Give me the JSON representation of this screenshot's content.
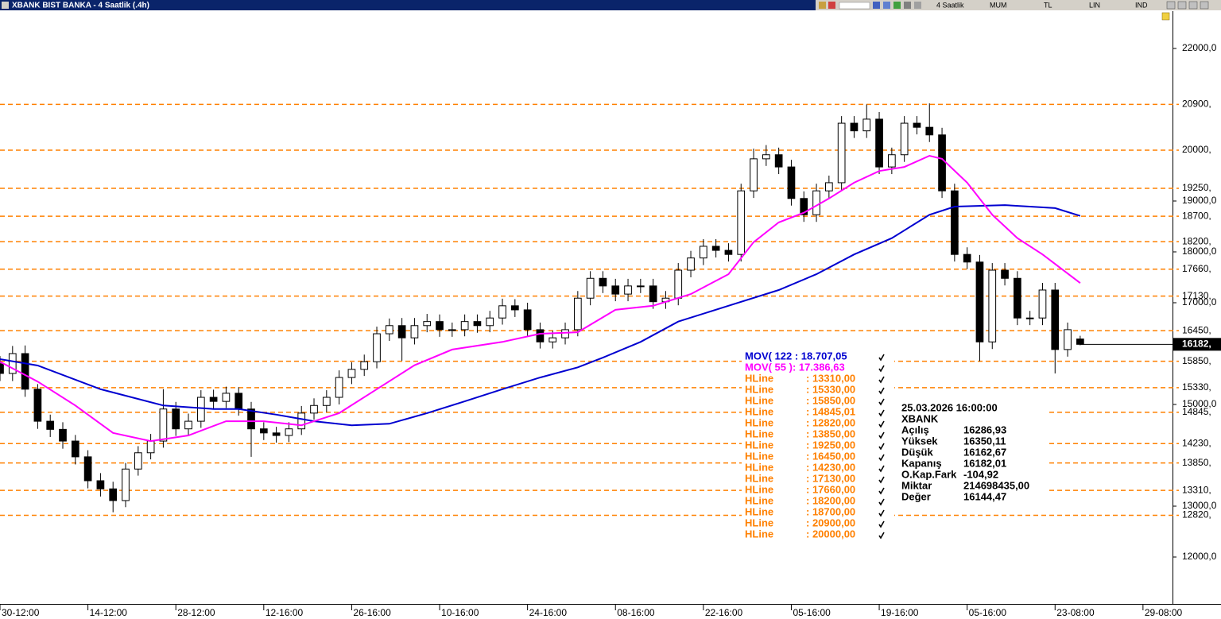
{
  "window": {
    "title": "XBANK BIST BANKA - 4 Saatlik (.4h)",
    "toolbar": [
      "4 Saatlik",
      "MUM",
      "TL",
      "LIN",
      "IND"
    ]
  },
  "chart_data": {
    "type": "candlestick",
    "xlim": [
      0,
      93.35
    ],
    "ylim": [
      11078,
      22734
    ],
    "xticks": [
      {
        "value": 0,
        "label": "30-12:00"
      },
      {
        "value": 7,
        "label": "14-12:00"
      },
      {
        "value": 14,
        "label": "28-12:00"
      },
      {
        "value": 21,
        "label": "12-16:00"
      },
      {
        "value": 28,
        "label": "26-16:00"
      },
      {
        "value": 35,
        "label": "10-16:00"
      },
      {
        "value": 42,
        "label": "24-16:00"
      },
      {
        "value": 49,
        "label": "08-16:00"
      },
      {
        "value": 56,
        "label": "22-16:00"
      },
      {
        "value": 63,
        "label": "05-16:00"
      },
      {
        "value": 70,
        "label": "19-16:00"
      },
      {
        "value": 77,
        "label": "05-16:00"
      },
      {
        "value": 84,
        "label": "23-08:00"
      },
      {
        "value": 91,
        "label": "29-08:00"
      }
    ],
    "yticks": [
      {
        "value": 22000,
        "label": "22000,0"
      },
      {
        "value": 19000,
        "label": "19000,0"
      },
      {
        "value": 18000,
        "label": "18000,0"
      },
      {
        "value": 17000,
        "label": "17000,0"
      },
      {
        "value": 15000,
        "label": "15000,0"
      },
      {
        "value": 13000,
        "label": "13000,0"
      },
      {
        "value": 12000,
        "label": "12000,0"
      }
    ],
    "up_color": "#ffffff",
    "down_color": "#000000",
    "open": [
      15800,
      15610,
      16000,
      15300,
      14670,
      14510,
      14280,
      13970,
      13500,
      13340,
      13110,
      13730,
      14050,
      14280,
      14910,
      14520,
      14670,
      15140,
      15060,
      15220,
      14910,
      14520,
      14440,
      14390,
      14520,
      14830,
      14980,
      15140,
      15530,
      15690,
      15840,
      16390,
      16550,
      16310,
      16550,
      16630,
      16470,
      16470,
      16630,
      16550,
      16700,
      16940,
      16860,
      16470,
      16230,
      16310,
      16470,
      17090,
      17480,
      17330,
      17170,
      17330,
      17330,
      17020,
      17090,
      17640,
      17880,
      18110,
      18030,
      17950,
      19200,
      19830,
      19910,
      19670,
      19050,
      18730,
      19200,
      19360,
      20530,
      20380,
      20610,
      19670,
      19910,
      20530,
      20450,
      20300,
      19200,
      17950,
      17800,
      16230,
      17640,
      17480,
      16700,
      16700,
      17250,
      16080,
      16286.93
    ],
    "high": [
      15950,
      16150,
      16160,
      15400,
      14800,
      14650,
      14400,
      14100,
      13650,
      13480,
      13850,
      14180,
      14420,
      15300,
      15050,
      14820,
      15280,
      15290,
      15350,
      15340,
      15050,
      14650,
      14560,
      14650,
      14970,
      15120,
      15280,
      15670,
      15830,
      15980,
      16530,
      16690,
      16700,
      16700,
      16780,
      16770,
      16610,
      16770,
      16770,
      16840,
      17080,
      17070,
      17000,
      16610,
      16450,
      16610,
      17230,
      17620,
      17620,
      17470,
      17470,
      17470,
      17470,
      17230,
      17780,
      18020,
      18250,
      18250,
      18170,
      19340,
      20030,
      20100,
      20050,
      19810,
      19190,
      19340,
      19500,
      20670,
      20670,
      20900,
      20750,
      20050,
      20670,
      20670,
      20920,
      20440,
      19340,
      18090,
      17940,
      17780,
      17780,
      17620,
      16840,
      17390,
      17390,
      16610,
      16350.11
    ],
    "low": [
      15460,
      15460,
      15150,
      14520,
      14360,
      14130,
      13820,
      13350,
      13190,
      12880,
      12980,
      13600,
      13920,
      14150,
      14380,
      14380,
      14540,
      14920,
      14930,
      14780,
      13970,
      14300,
      14250,
      14260,
      14400,
      14700,
      14850,
      15000,
      15400,
      15560,
      15710,
      16250,
      15860,
      16180,
      16420,
      16330,
      16330,
      16340,
      16410,
      16420,
      16570,
      16720,
      16330,
      16100,
      16100,
      16180,
      16340,
      16950,
      17190,
      17030,
      17030,
      17190,
      16880,
      16880,
      16950,
      17500,
      17740,
      17890,
      17810,
      17810,
      19060,
      19690,
      19530,
      18910,
      18590,
      18590,
      19060,
      19220,
      20240,
      20240,
      19530,
      19530,
      19770,
      20310,
      20160,
      19060,
      17810,
      17660,
      15850,
      16090,
      17340,
      16560,
      16560,
      16560,
      15610,
      15940,
      16162.67
    ],
    "close": [
      15610,
      16000,
      15300,
      14670,
      14510,
      14280,
      13970,
      13500,
      13340,
      13110,
      13730,
      14050,
      14280,
      14910,
      14520,
      14670,
      15140,
      15060,
      15220,
      14910,
      14520,
      14440,
      14390,
      14520,
      14830,
      14980,
      15140,
      15530,
      15690,
      15840,
      16390,
      16550,
      16310,
      16550,
      16630,
      16470,
      16470,
      16630,
      16550,
      16700,
      16940,
      16860,
      16470,
      16230,
      16310,
      16470,
      17090,
      17480,
      17330,
      17170,
      17330,
      17330,
      17020,
      17090,
      17640,
      17880,
      18110,
      18030,
      17950,
      19200,
      19830,
      19910,
      19670,
      19050,
      18730,
      19200,
      19360,
      20530,
      20380,
      20610,
      19670,
      19910,
      20530,
      20450,
      20300,
      19200,
      17950,
      17800,
      16230,
      17640,
      17480,
      16700,
      16700,
      17250,
      16080,
      16470,
      16182.01
    ],
    "series": [
      {
        "name": "MOV( 122 : 18.707,05",
        "color": "#0000d0",
        "x": [
          0,
          3,
          8,
          13,
          17,
          19,
          22,
          25,
          28,
          31,
          34,
          37,
          40,
          43,
          46,
          48,
          51,
          54,
          58,
          62,
          65,
          68,
          71,
          74,
          76,
          80,
          84,
          86
        ],
        "values": [
          15890,
          15765,
          15300,
          14980,
          14910,
          14910,
          14800,
          14670,
          14590,
          14620,
          14830,
          15060,
          15300,
          15530,
          15730,
          15920,
          16230,
          16630,
          16940,
          17250,
          17560,
          17950,
          18270,
          18730,
          18890,
          18920,
          18860,
          18707.05
        ]
      },
      {
        "name": "MOV( 55 ): 17.386,63",
        "color": "#ff00ff",
        "x": [
          0,
          3,
          6,
          9,
          12,
          15,
          18,
          21,
          24,
          27,
          30,
          33,
          36,
          40,
          43,
          46,
          49,
          52,
          55,
          58,
          60,
          62,
          64,
          66,
          68,
          70,
          72,
          74,
          75,
          77,
          79,
          81,
          83,
          86
        ],
        "values": [
          15840,
          15450,
          14980,
          14440,
          14280,
          14390,
          14670,
          14670,
          14590,
          14830,
          15300,
          15770,
          16080,
          16230,
          16390,
          16420,
          16860,
          16940,
          17170,
          17560,
          18190,
          18580,
          18770,
          19050,
          19360,
          19590,
          19670,
          19890,
          19830,
          19360,
          18730,
          18270,
          17950,
          17386.63
        ]
      }
    ],
    "hline_color": "#ff8000",
    "hlines": [
      {
        "value": 20900,
        "label": "20900,"
      },
      {
        "value": 20000,
        "label": "20000,"
      },
      {
        "value": 19250,
        "label": "19250,"
      },
      {
        "value": 18700,
        "label": "18700,"
      },
      {
        "value": 18200,
        "label": "18200,"
      },
      {
        "value": 17660,
        "label": "17660,"
      },
      {
        "value": 17130,
        "label": "17130,"
      },
      {
        "value": 16450,
        "label": "16450,"
      },
      {
        "value": 15850,
        "label": "15850,"
      },
      {
        "value": 15330,
        "label": "15330,"
      },
      {
        "value": 14845,
        "label": "14845,"
      },
      {
        "value": 14230,
        "label": "14230,"
      },
      {
        "value": 13850,
        "label": "13850,"
      },
      {
        "value": 13310,
        "label": "13310,"
      },
      {
        "value": 12820,
        "label": "12820,"
      }
    ],
    "hline_legend": {
      "name": "HLine",
      "entries": [
        ": 13310,00",
        ": 15330,00",
        ": 15850,00",
        ": 14845,01",
        ": 12820,00",
        ": 13850,00",
        ": 19250,00",
        ": 16450,00",
        ": 14230,00",
        ": 17130,00",
        ": 17660,00",
        ": 18200,00",
        ": 18700,00",
        ": 20900,00",
        ": 20000,00"
      ]
    },
    "last_price": {
      "value": 16182.01,
      "label": "16182,"
    },
    "info": {
      "datetime": "25.03.2026 16:00:00",
      "symbol": "XBANK",
      "rows": [
        [
          "Açılış",
          "16286,93"
        ],
        [
          "Yüksek",
          "16350,11"
        ],
        [
          "Düşük",
          "16162,67"
        ],
        [
          "Kapanış",
          "16182,01"
        ],
        [
          "O.Kap.Fark",
          "-104,92"
        ],
        [
          "Miktar",
          "214698435,00"
        ],
        [
          "Değer",
          "16144,47"
        ]
      ]
    }
  }
}
